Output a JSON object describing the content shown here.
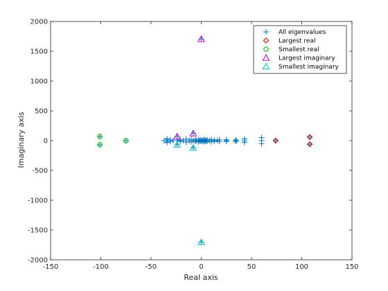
{
  "chart_data": {
    "type": "scatter",
    "xlabel": "Real axis",
    "ylabel": "Imaginary axis",
    "xlim": [
      -150,
      150
    ],
    "ylim": [
      -2000,
      2000
    ],
    "xticks": [
      -150,
      -100,
      -50,
      0,
      50,
      100,
      150
    ],
    "yticks": [
      -2000,
      -1500,
      -1000,
      -500,
      0,
      500,
      1000,
      1500,
      2000
    ],
    "grid": false,
    "legend_position": "top-right",
    "series": [
      {
        "name": "All eigenvalues",
        "marker": "plus",
        "color": "#0072BD",
        "points": [
          [
            -101,
            70
          ],
          [
            -101,
            -70
          ],
          [
            -75,
            0
          ],
          [
            108,
            60
          ],
          [
            108,
            -60
          ],
          [
            74,
            0
          ],
          [
            60,
            50
          ],
          [
            60,
            -50
          ],
          [
            60,
            0
          ],
          [
            43,
            30
          ],
          [
            43,
            -30
          ],
          [
            43,
            0
          ],
          [
            34,
            15
          ],
          [
            34,
            -15
          ],
          [
            35,
            0
          ],
          [
            25,
            15
          ],
          [
            25,
            -15
          ],
          [
            25,
            0
          ],
          [
            18,
            15
          ],
          [
            18,
            -15
          ],
          [
            16,
            0
          ],
          [
            13,
            10
          ],
          [
            13,
            -10
          ],
          [
            10,
            20
          ],
          [
            10,
            -20
          ],
          [
            8,
            0
          ],
          [
            6,
            15
          ],
          [
            6,
            -15
          ],
          [
            5,
            0
          ],
          [
            4,
            10
          ],
          [
            4,
            -10
          ],
          [
            3,
            20
          ],
          [
            3,
            -20
          ],
          [
            2,
            0
          ],
          [
            1,
            10
          ],
          [
            1,
            -10
          ],
          [
            0,
            0
          ],
          [
            0,
            1705
          ],
          [
            0,
            -1705
          ],
          [
            -1,
            10
          ],
          [
            -1,
            -10
          ],
          [
            -2,
            0
          ],
          [
            -3,
            20
          ],
          [
            -3,
            -20
          ],
          [
            -5,
            0
          ],
          [
            -6,
            15
          ],
          [
            -6,
            -15
          ],
          [
            -8,
            120
          ],
          [
            -8,
            -120
          ],
          [
            -8,
            0
          ],
          [
            -10,
            20
          ],
          [
            -10,
            -20
          ],
          [
            -12,
            0
          ],
          [
            -15,
            25
          ],
          [
            -15,
            -25
          ],
          [
            -18,
            0
          ],
          [
            -21,
            15
          ],
          [
            -21,
            -15
          ],
          [
            -24,
            70
          ],
          [
            -24,
            -70
          ],
          [
            -24,
            0
          ],
          [
            -28,
            0
          ],
          [
            -31,
            15
          ],
          [
            -31,
            -15
          ],
          [
            -34,
            30
          ],
          [
            -34,
            -30
          ],
          [
            -35,
            0
          ],
          [
            -37,
            0
          ]
        ]
      },
      {
        "name": "Largest real",
        "marker": "diamond",
        "color": "#C00000",
        "points": [
          [
            108,
            60
          ],
          [
            108,
            -60
          ],
          [
            74,
            0
          ]
        ]
      },
      {
        "name": "Smallest real",
        "marker": "hexagon",
        "color": "#00C000",
        "points": [
          [
            -101,
            70
          ],
          [
            -101,
            -70
          ],
          [
            -75,
            0
          ]
        ]
      },
      {
        "name": "Largest imaginary",
        "marker": "triangle-up",
        "color": "#C000C0",
        "points": [
          [
            0,
            1705
          ],
          [
            -8,
            120
          ],
          [
            -24,
            70
          ]
        ]
      },
      {
        "name": "Smallest imaginary",
        "marker": "triangle-up",
        "color": "#00C0C0",
        "points": [
          [
            0,
            -1705
          ],
          [
            -8,
            -120
          ],
          [
            -24,
            -70
          ]
        ]
      }
    ]
  }
}
